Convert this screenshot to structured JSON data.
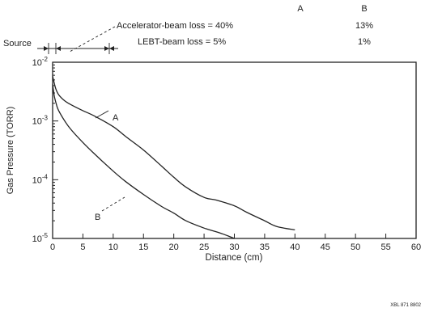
{
  "chart_data": {
    "type": "line",
    "title": "",
    "xlabel": "Distance (cm)",
    "ylabel": "Gas Pressure (TORR)",
    "xlim": [
      0,
      60
    ],
    "xticks": [
      0,
      5,
      10,
      15,
      20,
      25,
      30,
      35,
      40,
      45,
      50,
      55,
      60
    ],
    "ylim": [
      1e-05,
      0.01
    ],
    "yscale": "log",
    "ytick_labels": [
      {
        "base": "10",
        "exp": "-2",
        "value": 0.01
      },
      {
        "base": "10",
        "exp": "-3",
        "value": 0.001
      },
      {
        "base": "10",
        "exp": "-4",
        "value": 0.0001
      },
      {
        "base": "10",
        "exp": "-5",
        "value": 1e-05
      }
    ],
    "grid": false,
    "series": [
      {
        "name": "A",
        "x": [
          0,
          0.5,
          1,
          2,
          3,
          5,
          7,
          10,
          12,
          15,
          18,
          20,
          22,
          25,
          27,
          30,
          32,
          35,
          37,
          40
        ],
        "y": [
          0.0058,
          0.0036,
          0.0028,
          0.0022,
          0.0019,
          0.0015,
          0.0012,
          0.0008,
          0.00055,
          0.00032,
          0.00017,
          0.00011,
          7.5e-05,
          5e-05,
          4.5e-05,
          3.6e-05,
          2.8e-05,
          2e-05,
          1.6e-05,
          1.4e-05
        ]
      },
      {
        "name": "B",
        "x": [
          0,
          0.3,
          0.7,
          1,
          2,
          3,
          5,
          7,
          10,
          12,
          15,
          18,
          20,
          22,
          25,
          27,
          28,
          29,
          30
        ],
        "y": [
          0.0042,
          0.0026,
          0.0018,
          0.0015,
          0.001,
          0.00072,
          0.00043,
          0.00027,
          0.00014,
          9.4e-05,
          5.6e-05,
          3.5e-05,
          2.7e-05,
          2e-05,
          1.5e-05,
          1.3e-05,
          1.2e-05,
          1.1e-05,
          1e-05
        ]
      }
    ],
    "annotations": {
      "curve_label_a": "A",
      "curve_label_b": "B",
      "column_a": "A",
      "column_b": "B",
      "source_label": "Source",
      "accelerator_label": "Accelerator-beam  loss  = 40%",
      "accelerator_b": "13%",
      "lebt_label": "LEBT-beam  loss  = 5%",
      "lebt_b": "1%",
      "figure_id": "XBL 871 8802"
    }
  }
}
